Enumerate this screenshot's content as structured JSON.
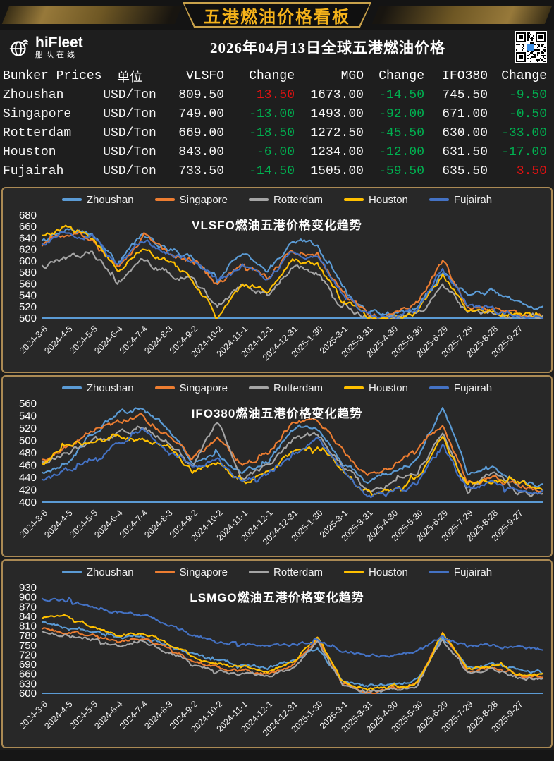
{
  "colors": {
    "up_change": "#e11212",
    "down_change": "#00b050",
    "banner_gold": "#f5b31a",
    "panel_border": "#ab8a54",
    "axis_line": "#5b9bd5",
    "text": "#ffffff"
  },
  "header": {
    "banner_title": "五港燃油价格看板"
  },
  "subheader": {
    "brand_name": "hiFleet",
    "brand_sub": "船队在线",
    "title": "2026年04月13日全球五港燃油价格",
    "qr_icon": "qr-code"
  },
  "table": {
    "headers": [
      "Bunker Prices",
      "单位",
      "VLSFO",
      "Change",
      "MGO",
      "Change",
      "IFO380",
      "Change"
    ],
    "rows": [
      {
        "port": "Zhoushan",
        "unit": "USD/Ton",
        "vlsfo": "809.50",
        "vlsfo_change": "13.50",
        "mgo": "1673.00",
        "mgo_change": "-14.50",
        "ifo380": "745.50",
        "ifo380_change": "-9.50"
      },
      {
        "port": "Singapore",
        "unit": "USD/Ton",
        "vlsfo": "749.00",
        "vlsfo_change": "-13.00",
        "mgo": "1493.00",
        "mgo_change": "-92.00",
        "ifo380": "671.00",
        "ifo380_change": "-0.50"
      },
      {
        "port": "Rotterdam",
        "unit": "USD/Ton",
        "vlsfo": "669.00",
        "vlsfo_change": "-18.50",
        "mgo": "1272.50",
        "mgo_change": "-45.50",
        "ifo380": "630.00",
        "ifo380_change": "-33.00"
      },
      {
        "port": "Houston",
        "unit": "USD/Ton",
        "vlsfo": "843.00",
        "vlsfo_change": "-6.00",
        "mgo": "1234.00",
        "mgo_change": "-12.00",
        "ifo380": "631.50",
        "ifo380_change": "-17.00"
      },
      {
        "port": "Fujairah",
        "unit": "USD/Ton",
        "vlsfo": "733.50",
        "vlsfo_change": "-14.50",
        "mgo": "1505.00",
        "mgo_change": "-59.50",
        "ifo380": "635.50",
        "ifo380_change": "3.50"
      }
    ]
  },
  "chart_data": [
    {
      "type": "line",
      "title": "VLSFO燃油五港价格变化趋势",
      "legend_position": "top",
      "grid": false,
      "ylim": [
        500,
        680
      ],
      "ytick_step": 20,
      "x_tick_labels": [
        "2024-3-6",
        "2024-4-5",
        "2024-5-5",
        "2024-6-4",
        "2024-7-4",
        "2024-8-3",
        "2024-9-2",
        "2024-10-2",
        "2024-11-1",
        "2024-12-1",
        "2024-12-31",
        "2025-1-30",
        "2025-3-1",
        "2025-3-31",
        "2025-4-30",
        "2025-5-30",
        "2025-6-29",
        "2025-7-29",
        "2025-8-28",
        "2025-9-27"
      ],
      "sampling": "values are read at each x tick date plus the chart end",
      "series": [
        {
          "name": "Zhoushan",
          "color": "#5B9BD5",
          "values": [
            634,
            656,
            648,
            596,
            644,
            620,
            606,
            570,
            618,
            578,
            638,
            626,
            553,
            514,
            508,
            516,
            584,
            536,
            548,
            524,
            520
          ]
        },
        {
          "name": "Singapore",
          "color": "#ED7D31",
          "values": [
            628,
            648,
            640,
            588,
            640,
            614,
            599,
            560,
            592,
            570,
            618,
            612,
            545,
            505,
            504,
            526,
            600,
            520,
            515,
            506,
            502
          ]
        },
        {
          "name": "Rotterdam",
          "color": "#A5A5A5",
          "values": [
            589,
            604,
            618,
            560,
            600,
            580,
            564,
            520,
            560,
            540,
            590,
            580,
            520,
            502,
            501,
            505,
            556,
            510,
            505,
            501,
            500
          ]
        },
        {
          "name": "Houston",
          "color": "#FFC000",
          "values": [
            641,
            660,
            640,
            580,
            620,
            600,
            568,
            506,
            560,
            545,
            600,
            590,
            530,
            503,
            502,
            510,
            576,
            515,
            510,
            505,
            502
          ]
        },
        {
          "name": "Fujairah",
          "color": "#4472C4",
          "values": [
            630,
            646,
            645,
            590,
            636,
            615,
            600,
            565,
            590,
            568,
            615,
            608,
            542,
            505,
            503,
            512,
            590,
            518,
            512,
            504,
            501
          ]
        }
      ]
    },
    {
      "type": "line",
      "title": "IFO380燃油五港价格变化趋势",
      "legend_position": "top",
      "grid": false,
      "ylim": [
        400,
        560
      ],
      "ytick_step": 20,
      "x_tick_labels": [
        "2024-3-6",
        "2024-4-5",
        "2024-5-5",
        "2024-6-4",
        "2024-7-4",
        "2024-8-3",
        "2024-9-2",
        "2024-10-2",
        "2024-11-1",
        "2024-12-1",
        "2024-12-31",
        "2025-1-30",
        "2025-3-1",
        "2025-3-31",
        "2025-4-30",
        "2025-5-30",
        "2025-6-29",
        "2025-7-29",
        "2025-8-28",
        "2025-9-27"
      ],
      "sampling": "values are read at each x tick date plus the chart end",
      "series": [
        {
          "name": "Zhoushan",
          "color": "#5B9BD5",
          "values": [
            450,
            466,
            510,
            546,
            552,
            520,
            464,
            480,
            450,
            466,
            516,
            526,
            466,
            430,
            450,
            470,
            556,
            446,
            460,
            432,
            428
          ]
        },
        {
          "name": "Singapore",
          "color": "#ED7D31",
          "values": [
            470,
            490,
            515,
            530,
            540,
            510,
            470,
            500,
            460,
            480,
            530,
            534,
            480,
            440,
            460,
            490,
            528,
            430,
            440,
            426,
            420
          ]
        },
        {
          "name": "Rotterdam",
          "color": "#A5A5A5",
          "values": [
            464,
            480,
            500,
            510,
            520,
            500,
            456,
            530,
            440,
            460,
            500,
            510,
            460,
            420,
            430,
            450,
            520,
            420,
            450,
            415,
            412
          ]
        },
        {
          "name": "Houston",
          "color": "#FFC000",
          "values": [
            460,
            494,
            500,
            506,
            500,
            494,
            450,
            460,
            430,
            450,
            480,
            490,
            450,
            415,
            420,
            440,
            500,
            430,
            435,
            430,
            424
          ]
        },
        {
          "name": "Fujairah",
          "color": "#4472C4",
          "values": [
            434,
            450,
            470,
            490,
            520,
            480,
            455,
            470,
            430,
            445,
            475,
            505,
            450,
            410,
            415,
            430,
            490,
            420,
            430,
            420,
            416
          ]
        }
      ]
    },
    {
      "type": "line",
      "title": "LSMGO燃油五港价格变化趋势",
      "legend_position": "top",
      "grid": false,
      "ylim": [
        600,
        930
      ],
      "ytick_step": 30,
      "x_tick_labels": [
        "2024-3-6",
        "2024-4-5",
        "2024-5-5",
        "2024-6-4",
        "2024-7-4",
        "2024-8-3",
        "2024-9-2",
        "2024-10-2",
        "2024-11-1",
        "2024-12-1",
        "2024-12-31",
        "2025-1-30",
        "2025-3-1",
        "2025-3-31",
        "2025-4-30",
        "2025-5-30",
        "2025-6-29",
        "2025-7-29",
        "2025-8-28",
        "2025-9-27"
      ],
      "sampling": "values are read at each x tick date plus the chart end",
      "series": [
        {
          "name": "Zhoushan",
          "color": "#5B9BD5",
          "values": [
            820,
            802,
            790,
            772,
            780,
            750,
            720,
            700,
            690,
            680,
            700,
            740,
            640,
            620,
            632,
            640,
            780,
            680,
            692,
            672,
            665
          ]
        },
        {
          "name": "Singapore",
          "color": "#ED7D31",
          "values": [
            800,
            790,
            780,
            762,
            770,
            740,
            700,
            680,
            670,
            660,
            690,
            768,
            630,
            605,
            615,
            630,
            784,
            670,
            680,
            656,
            650
          ]
        },
        {
          "name": "Rotterdam",
          "color": "#A5A5A5",
          "values": [
            790,
            780,
            770,
            752,
            760,
            730,
            695,
            670,
            660,
            650,
            680,
            758,
            625,
            600,
            610,
            625,
            770,
            664,
            676,
            650,
            645
          ]
        },
        {
          "name": "Houston",
          "color": "#FFC000",
          "values": [
            836,
            846,
            810,
            780,
            790,
            760,
            720,
            690,
            680,
            670,
            700,
            778,
            640,
            610,
            620,
            635,
            790,
            675,
            690,
            662,
            655
          ]
        },
        {
          "name": "Fujairah",
          "color": "#4472C4",
          "values": [
            895,
            886,
            876,
            850,
            846,
            815,
            780,
            765,
            755,
            748,
            752,
            760,
            735,
            720,
            722,
            728,
            778,
            748,
            752,
            742,
            738
          ]
        }
      ]
    }
  ]
}
